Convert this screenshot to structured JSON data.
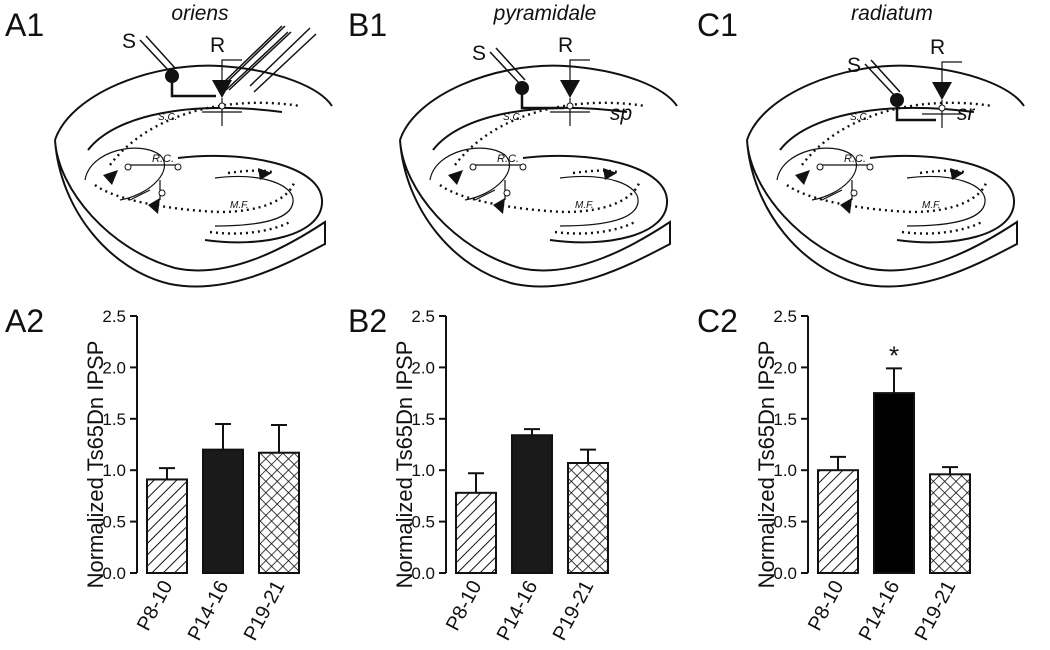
{
  "chart_data": [
    {
      "type": "bar",
      "panel_label": "A2",
      "ylabel": "Normalized Ts65Dn IPSP",
      "categories": [
        "P8-10",
        "P14-16",
        "P19-21"
      ],
      "values": [
        0.91,
        1.2,
        1.17
      ],
      "errors": [
        0.11,
        0.25,
        0.27
      ],
      "patterns": [
        "hatch",
        "solid",
        "crosshatch"
      ],
      "color": "#1a1a1a",
      "ylim": [
        0,
        2.5
      ],
      "yticks": [
        {
          "value": 0,
          "label": "0.0"
        },
        {
          "value": 0.5,
          "label": "0.5"
        },
        {
          "value": 1,
          "label": "1.0"
        },
        {
          "value": 1.5,
          "label": "1.5"
        },
        {
          "value": 2,
          "label": "2.0"
        },
        {
          "value": 2.5,
          "label": "2.5"
        }
      ]
    },
    {
      "type": "bar",
      "panel_label": "B2",
      "ylabel": "Normalized Ts65Dn IPSP",
      "categories": [
        "P8-10",
        "P14-16",
        "P19-21"
      ],
      "values": [
        0.78,
        1.34,
        1.07
      ],
      "errors": [
        0.19,
        0.06,
        0.13
      ],
      "patterns": [
        "hatch",
        "solid",
        "crosshatch"
      ],
      "color": "#1a1a1a",
      "ylim": [
        0,
        2.5
      ],
      "yticks": [
        {
          "value": 0,
          "label": "0.0"
        },
        {
          "value": 0.5,
          "label": "0.5"
        },
        {
          "value": 1,
          "label": "1.0"
        },
        {
          "value": 1.5,
          "label": "1.5"
        },
        {
          "value": 2,
          "label": "2.0"
        },
        {
          "value": 2.5,
          "label": "2.5"
        }
      ]
    },
    {
      "type": "bar",
      "panel_label": "C2",
      "ylabel": "Normalized Ts65Dn IPSP",
      "categories": [
        "P8-10",
        "P14-16",
        "P19-21"
      ],
      "values": [
        1.0,
        1.75,
        0.96
      ],
      "errors": [
        0.13,
        0.24,
        0.07
      ],
      "patterns": [
        "hatch",
        "solid",
        "crosshatch"
      ],
      "color": "#000000",
      "ylim": [
        0,
        2.5
      ],
      "yticks": [
        {
          "value": 0,
          "label": "0.0"
        },
        {
          "value": 0.5,
          "label": "0.5"
        },
        {
          "value": 1,
          "label": "1.0"
        },
        {
          "value": 1.5,
          "label": "1.5"
        },
        {
          "value": 2,
          "label": "2.0"
        },
        {
          "value": 2.5,
          "label": "2.5"
        }
      ],
      "annotations": [
        {
          "category": "P14-16",
          "text": "*"
        }
      ]
    }
  ],
  "diagrams": [
    {
      "panel_label": "A1",
      "region": "oriens",
      "stim": "S",
      "rec": "R",
      "sc": "S.C.",
      "rc": "R.C.",
      "mf": "M.F."
    },
    {
      "panel_label": "B1",
      "region": "pyramidale",
      "stim": "S",
      "rec": "R",
      "sc": "S.C.",
      "rc": "R.C.",
      "mf": "M.F.",
      "layer": "sp"
    },
    {
      "panel_label": "C1",
      "region": "radiatum",
      "stim": "S",
      "rec": "R",
      "sc": "S.C.",
      "rc": "R.C.",
      "mf": "M.F.",
      "layer": "sr"
    }
  ]
}
